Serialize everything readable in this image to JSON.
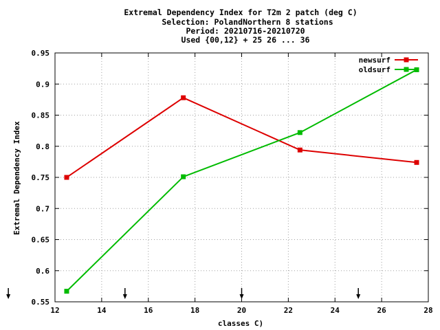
{
  "chart_data": {
    "type": "line",
    "title_lines": [
      "Extremal Dependency Index  for T2m 2 patch (deg C)",
      "Selection: PolandNorthern      8 stations",
      "Period: 20210716-20210720",
      "Used {00,12} + 25 26 ... 36"
    ],
    "xlabel": "classes C)",
    "ylabel": "Extremal Dependency Index",
    "xlim": [
      12,
      28
    ],
    "ylim": [
      0.55,
      0.95
    ],
    "x_ticks": [
      12,
      14,
      16,
      18,
      20,
      22,
      24,
      26,
      28
    ],
    "x_tick_labels": [
      "12",
      "14",
      "16",
      "18",
      "20",
      "22",
      "24",
      "26",
      "28"
    ],
    "y_ticks": [
      0.55,
      0.6,
      0.65,
      0.7,
      0.75,
      0.8,
      0.85,
      0.9,
      0.95
    ],
    "y_tick_labels": [
      "0.55",
      "0.6",
      "0.65",
      "0.7",
      "0.75",
      "0.8",
      "0.85",
      "0.9",
      "0.95"
    ],
    "grid": true,
    "legend_position": "top-right",
    "threshold_arrows_x": [
      10,
      15,
      20,
      25
    ],
    "series": [
      {
        "name": "newsurf",
        "color": "#dd0000",
        "x": [
          12.5,
          17.5,
          22.5,
          27.5
        ],
        "y": [
          0.75,
          0.878,
          0.794,
          0.774
        ]
      },
      {
        "name": "oldsurf",
        "color": "#00bb00",
        "x": [
          12.5,
          17.5,
          22.5,
          27.5
        ],
        "y": [
          0.567,
          0.751,
          0.822,
          0.923
        ]
      }
    ]
  }
}
